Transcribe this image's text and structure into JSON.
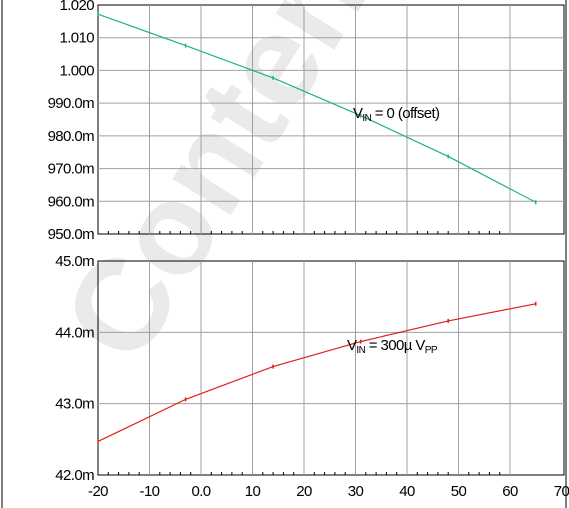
{
  "chart_data": [
    {
      "type": "line",
      "ylim": [
        0.95,
        1.02
      ],
      "xlim": [
        -20,
        70
      ],
      "y_tick_labels": [
        "1.020",
        "1.010",
        "1.000",
        "990.0m",
        "980.0m",
        "970.0m",
        "960.0m",
        "950.0m"
      ],
      "grid": true,
      "annotation": {
        "main": "V",
        "sub": "IN",
        "rest": " = 0 (offset)"
      },
      "series": [
        {
          "color": "#22b573",
          "x": [
            -20,
            -3,
            14,
            31,
            48,
            65
          ],
          "y": [
            1.0172,
            1.0076,
            0.9977,
            0.9862,
            0.9737,
            0.9597
          ]
        }
      ]
    },
    {
      "type": "line",
      "ylim": [
        0.042,
        0.045
      ],
      "xlim": [
        -20,
        70
      ],
      "y_tick_labels": [
        "45.0m",
        "44.0m",
        "43.0m",
        "42.0m"
      ],
      "x_tick_labels": [
        "-20",
        "-10",
        "0.0",
        "10",
        "20",
        "30",
        "40",
        "50",
        "60",
        "70"
      ],
      "grid": true,
      "annotation": {
        "main": "V",
        "sub": "IN",
        "mid": " = 300µ V",
        "sub2": "PP"
      },
      "series": [
        {
          "color": "#e0201b",
          "x": [
            -20,
            -3,
            14,
            31,
            48,
            65
          ],
          "y": [
            0.04247,
            0.04306,
            0.04352,
            0.04387,
            0.04416,
            0.0444
          ]
        }
      ]
    }
  ],
  "watermark": "Content",
  "colors": {
    "grid": "#a0a0a0",
    "frame": "#000000"
  }
}
